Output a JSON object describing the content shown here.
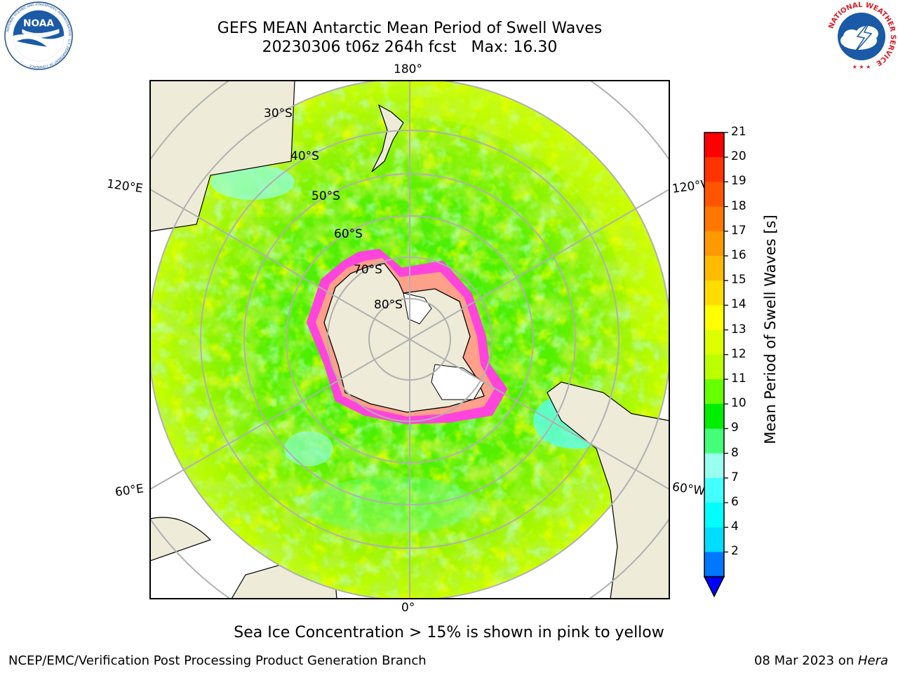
{
  "header": {
    "title_line1": "GEFS MEAN Antarctic Mean Period of Swell Waves",
    "title_line2": "20230306 t06z 264h fcst   Max: 16.30"
  },
  "logos": {
    "left": {
      "name": "noaa-logo",
      "text": "NOAA",
      "ring_text": "NATIONAL OCEANIC AND ATMOSPHERIC ADMINISTRATION · U.S. DEPARTMENT OF COMMERCE"
    },
    "right": {
      "name": "nws-logo",
      "ring_text": "NATIONAL WEATHER SERVICE"
    }
  },
  "map": {
    "projection": "south-polar-stereographic",
    "longitude_labels": {
      "top": "180°",
      "bottom": "0°",
      "left_upper": "120°E",
      "left_lower": "60°E",
      "right_upper": "120°W",
      "right_lower": "60°W"
    },
    "latitude_labels": [
      "30°S",
      "40°S",
      "50°S",
      "60°S",
      "70°S",
      "80°S"
    ],
    "colors": {
      "land": "#eeecd9",
      "sea_ice": "#ffffff",
      "ice_edge": "#ff44dd",
      "grid": "#b0b0b0"
    }
  },
  "colorbar": {
    "title": "Mean Period of Swell Waves [s]",
    "ticks": [
      "21",
      "20",
      "19",
      "18",
      "17",
      "16",
      "15",
      "14",
      "13",
      "12",
      "11",
      "10",
      "9",
      "8",
      "7",
      "6",
      "4",
      "2"
    ],
    "colors_top_to_bottom": [
      "#ff0000",
      "#ff3300",
      "#ff5500",
      "#ff7700",
      "#ff9900",
      "#ffbb00",
      "#ffdd00",
      "#ffff00",
      "#ddff00",
      "#bbff00",
      "#66ff00",
      "#00ee00",
      "#44ff77",
      "#99ffee",
      "#44ffff",
      "#00ffff",
      "#00ddff",
      "#0077ff"
    ],
    "extend_color": "#0000ff"
  },
  "caption": "Sea Ice Concentration > 15% is shown in pink to yellow",
  "footer": {
    "left": "NCEP/EMC/Verification Post Processing Product Generation Branch",
    "right_date": "08 Mar 2023 on ",
    "right_host": "Hera"
  }
}
